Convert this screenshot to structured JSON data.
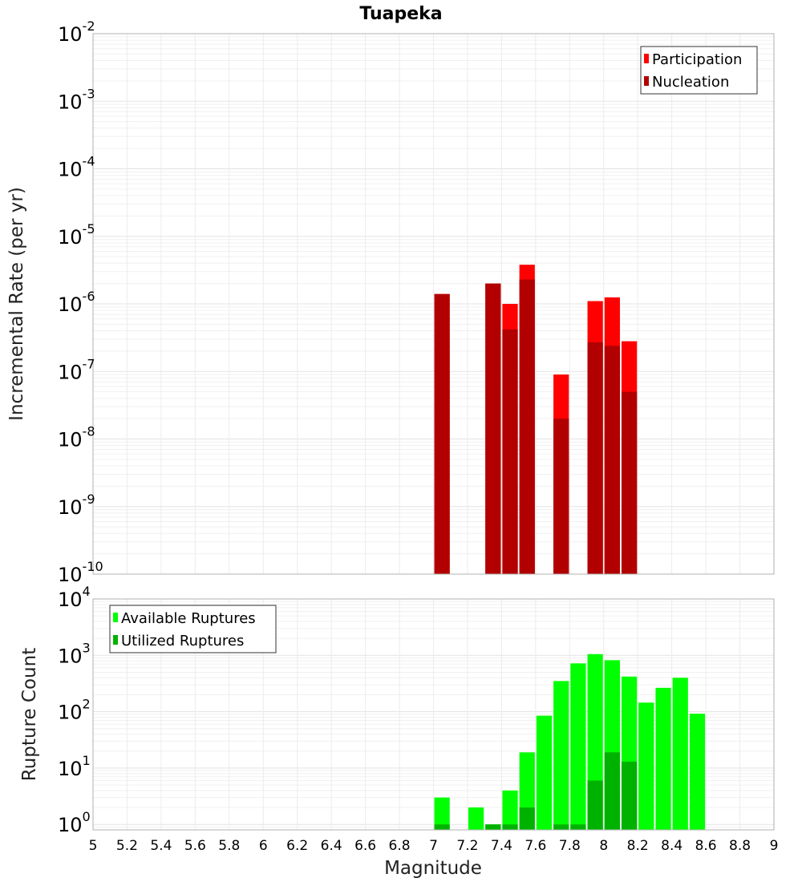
{
  "chart_data": {
    "title": "Tuapeka",
    "xlabel": "Magnitude",
    "x_ticks": [
      "5",
      "5.2",
      "5.4",
      "5.6",
      "5.8",
      "6",
      "6.2",
      "6.4",
      "6.6",
      "6.8",
      "7",
      "7.2",
      "7.4",
      "7.6",
      "7.8",
      "8",
      "8.2",
      "8.4",
      "8.6",
      "8.8",
      "9"
    ],
    "xlim": [
      5,
      9
    ],
    "panels": [
      {
        "type": "bar",
        "yscale": "log",
        "ylabel": "Incremental Rate (per yr)",
        "ylim": [
          1e-10,
          0.01
        ],
        "y_ticks": [
          {
            "value": 0.01,
            "base": "10",
            "exp": "-2"
          },
          {
            "value": 0.001,
            "base": "10",
            "exp": "-3"
          },
          {
            "value": 0.0001,
            "base": "10",
            "exp": "-4"
          },
          {
            "value": 1e-05,
            "base": "10",
            "exp": "-5"
          },
          {
            "value": 1e-06,
            "base": "10",
            "exp": "-6"
          },
          {
            "value": 1e-07,
            "base": "10",
            "exp": "-7"
          },
          {
            "value": 1e-08,
            "base": "10",
            "exp": "-8"
          },
          {
            "value": 1e-09,
            "base": "10",
            "exp": "-9"
          },
          {
            "value": 1e-10,
            "base": "10",
            "exp": "-10"
          }
        ],
        "legend": "top-right",
        "series": [
          {
            "name": "Participation",
            "color": "#ff0000",
            "points": [
              [
                7.05,
                1.4e-06
              ],
              [
                7.35,
                2e-06
              ],
              [
                7.45,
                1e-06
              ],
              [
                7.55,
                3.8e-06
              ],
              [
                7.75,
                9e-08
              ],
              [
                7.95,
                1.1e-06
              ],
              [
                8.05,
                1.25e-06
              ],
              [
                8.15,
                2.8e-07
              ]
            ]
          },
          {
            "name": "Nucleation",
            "color": "#b20000",
            "points": [
              [
                7.05,
                1.4e-06
              ],
              [
                7.35,
                2e-06
              ],
              [
                7.45,
                4.2e-07
              ],
              [
                7.55,
                2.3e-06
              ],
              [
                7.75,
                2e-08
              ],
              [
                7.95,
                2.7e-07
              ],
              [
                8.05,
                2.4e-07
              ],
              [
                8.15,
                5e-08
              ]
            ]
          }
        ]
      },
      {
        "type": "bar",
        "yscale": "log",
        "ylabel": "Rupture Count",
        "ylim": [
          0.8,
          10000
        ],
        "y_ticks": [
          {
            "value": 10000,
            "base": "10",
            "exp": "4"
          },
          {
            "value": 1000,
            "base": "10",
            "exp": "3"
          },
          {
            "value": 100,
            "base": "10",
            "exp": "2"
          },
          {
            "value": 10,
            "base": "10",
            "exp": "1"
          },
          {
            "value": 1,
            "base": "10",
            "exp": "0"
          }
        ],
        "legend": "top-left",
        "series": [
          {
            "name": "Available Ruptures",
            "color": "#00ff00",
            "points": [
              [
                7.05,
                3
              ],
              [
                7.25,
                2
              ],
              [
                7.35,
                1
              ],
              [
                7.45,
                4
              ],
              [
                7.55,
                19
              ],
              [
                7.65,
                85
              ],
              [
                7.75,
                350
              ],
              [
                7.85,
                720
              ],
              [
                7.95,
                1050
              ],
              [
                8.05,
                820
              ],
              [
                8.15,
                420
              ],
              [
                8.25,
                145
              ],
              [
                8.35,
                265
              ],
              [
                8.45,
                400
              ],
              [
                8.55,
                92
              ]
            ]
          },
          {
            "name": "Utilized Ruptures",
            "color": "#00b200",
            "points": [
              [
                7.05,
                1
              ],
              [
                7.35,
                1
              ],
              [
                7.45,
                1
              ],
              [
                7.55,
                2
              ],
              [
                7.75,
                1
              ],
              [
                7.85,
                1
              ],
              [
                7.95,
                6
              ],
              [
                8.05,
                19
              ],
              [
                8.15,
                13
              ]
            ]
          }
        ]
      }
    ]
  }
}
